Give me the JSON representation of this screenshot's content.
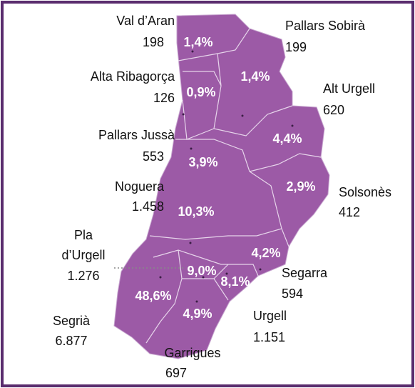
{
  "map": {
    "regions": [
      {
        "name_lines": [
          "Val d’Aran"
        ],
        "count": "198",
        "share": "1,4%"
      },
      {
        "name_lines": [
          "Pallars Sobirà"
        ],
        "count": "199",
        "share": "1,4%"
      },
      {
        "name_lines": [
          "Alta Ribagorça"
        ],
        "count": "126",
        "share": "0,9%"
      },
      {
        "name_lines": [
          "Alt Urgell"
        ],
        "count": "620",
        "share": "4,4%"
      },
      {
        "name_lines": [
          "Pallars  Jussà"
        ],
        "count": "553",
        "share": "3,9%"
      },
      {
        "name_lines": [
          "Noguera"
        ],
        "count": "1.458",
        "share": "10,3%"
      },
      {
        "name_lines": [
          "Solsonès"
        ],
        "count": "412",
        "share": "2,9%"
      },
      {
        "name_lines": [
          "Pla",
          "d’Urgell"
        ],
        "count": "1.276",
        "share": "9,0%"
      },
      {
        "name_lines": [
          "Segarra"
        ],
        "count": "594",
        "share": "4,2%"
      },
      {
        "name_lines": [
          "Urgell"
        ],
        "count": "1.151",
        "share": "8,1%"
      },
      {
        "name_lines": [
          "Segrià"
        ],
        "count": "6.877",
        "share": "48,6%"
      },
      {
        "name_lines": [
          "Garrigues"
        ],
        "count": "697",
        "share": "4,9%"
      }
    ]
  }
}
